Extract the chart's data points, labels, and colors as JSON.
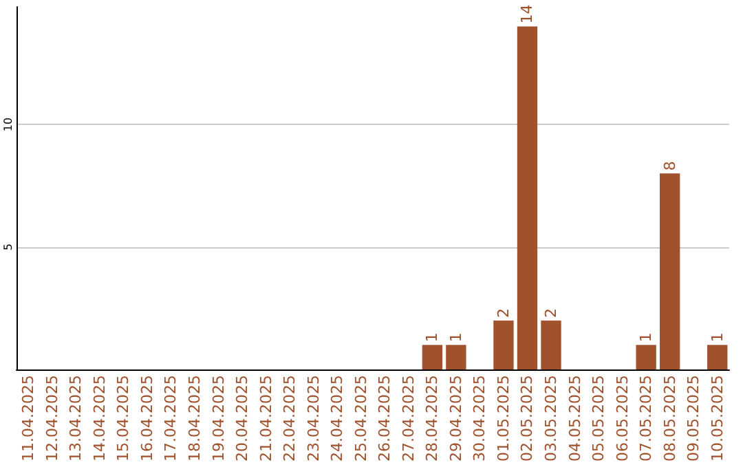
{
  "chart_data": {
    "type": "bar",
    "categories": [
      "11.04.2025",
      "12.04.2025",
      "13.04.2025",
      "14.04.2025",
      "15.04.2025",
      "16.04.2025",
      "17.04.2025",
      "18.04.2025",
      "19.04.2025",
      "20.04.2025",
      "21.04.2025",
      "22.04.2025",
      "23.04.2025",
      "24.04.2025",
      "25.04.2025",
      "26.04.2025",
      "27.04.2025",
      "28.04.2025",
      "29.04.2025",
      "30.04.2025",
      "01.05.2025",
      "02.05.2025",
      "03.05.2025",
      "04.05.2025",
      "05.05.2025",
      "06.05.2025",
      "07.05.2025",
      "08.05.2025",
      "09.05.2025",
      "10.05.2025"
    ],
    "values": [
      0,
      0,
      0,
      0,
      0,
      0,
      0,
      0,
      0,
      0,
      0,
      0,
      0,
      0,
      0,
      0,
      0,
      1,
      1,
      0,
      2,
      14,
      2,
      0,
      0,
      0,
      1,
      8,
      0,
      1
    ],
    "value_labels": [
      null,
      null,
      null,
      null,
      null,
      null,
      null,
      null,
      null,
      null,
      null,
      null,
      null,
      null,
      null,
      null,
      null,
      "1",
      "1",
      null,
      "2",
      "14",
      "2",
      null,
      null,
      null,
      "1",
      "8",
      null,
      "1"
    ],
    "color": "#a0522d",
    "ylim": [
      0,
      14.8
    ],
    "yticks": [
      5,
      10
    ],
    "grid": "y"
  }
}
